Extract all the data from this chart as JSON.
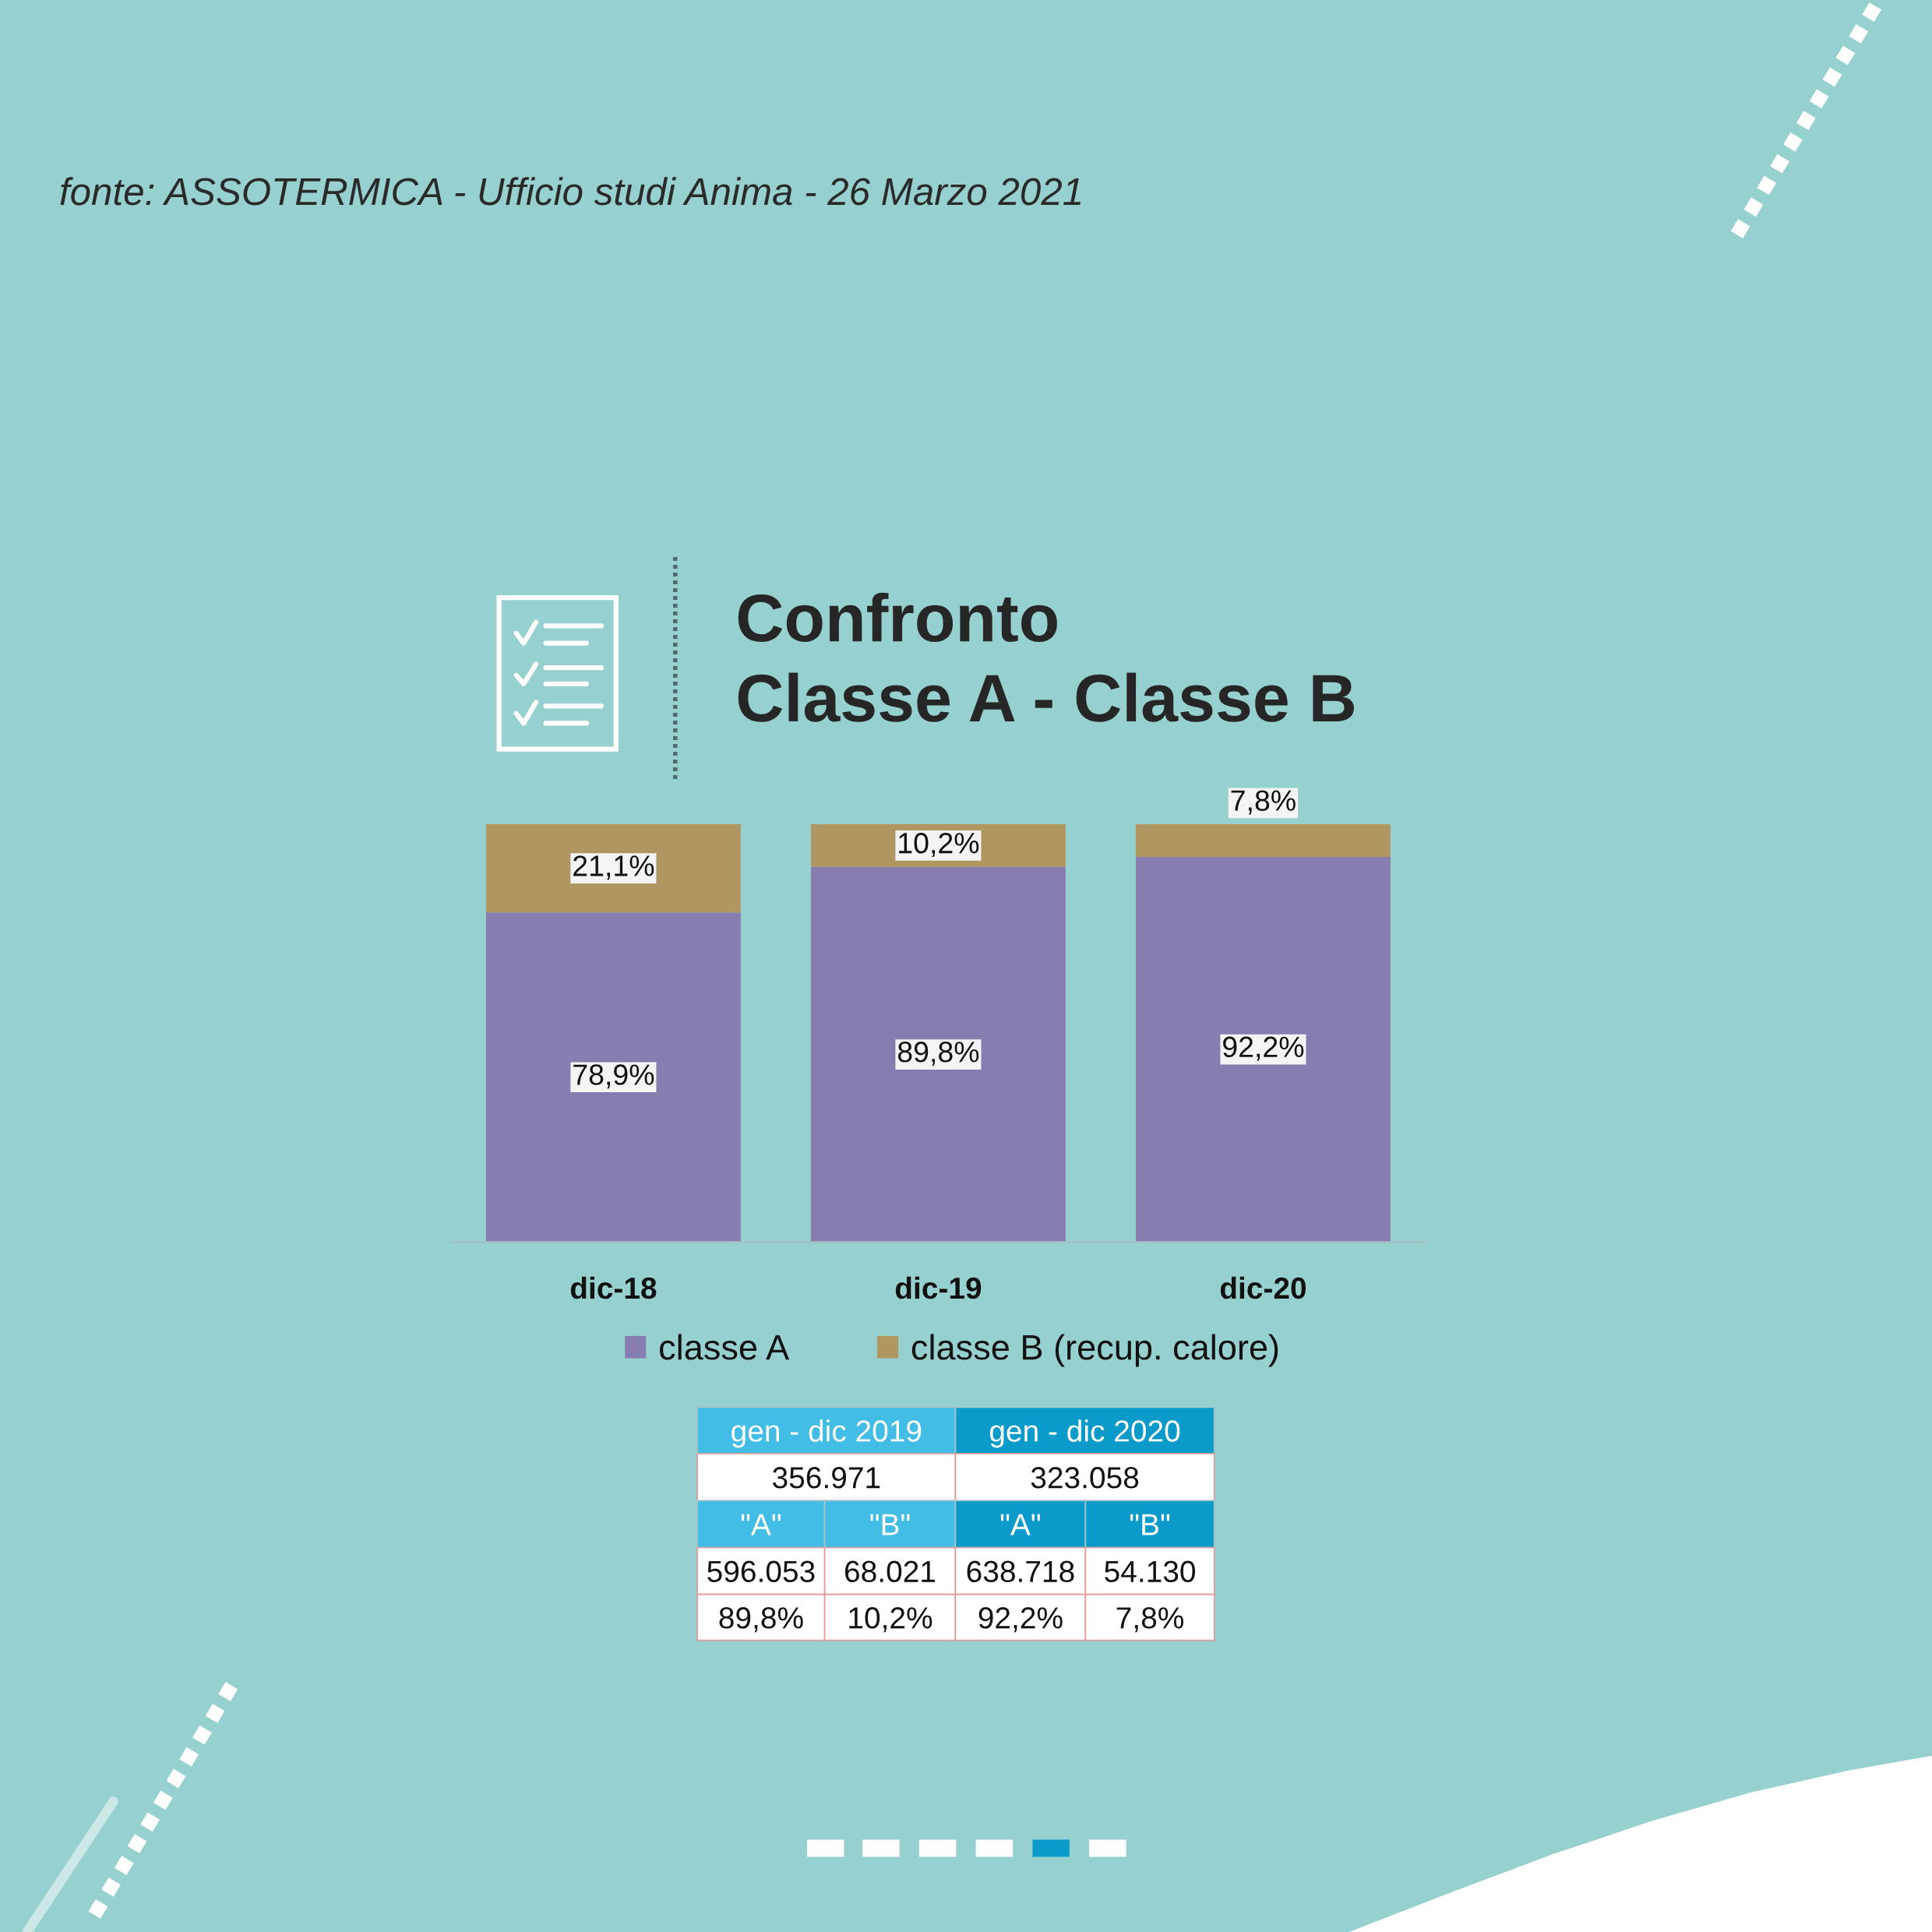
{
  "chart_data": {
    "type": "bar",
    "title": "Confronto\nClasse A - Classe B",
    "categories": [
      "dic-18",
      "dic-19",
      "dic-20"
    ],
    "stacked": true,
    "ylim": [
      0,
      100
    ],
    "tick_labels": "x",
    "legend": "bottom",
    "series": [
      {
        "name": "classe A",
        "color": "#877db0",
        "values": [
          78.9,
          89.8,
          92.2
        ],
        "value_labels": [
          "78,9%",
          "89,8%",
          "92,2%"
        ]
      },
      {
        "name": "classe B (recup. calore)",
        "color": "#b09761",
        "values": [
          21.1,
          10.2,
          7.8
        ],
        "value_labels": [
          "21,1%",
          "10,2%",
          "7,8%"
        ]
      }
    ],
    "annotations": [
      "fonte: ASSOTERMICA - Ufficio studi Anima - 26 Marzo 2021",
      "gen - dic 2019",
      "gen - dic 2020",
      "356.971",
      "323.058",
      "\"A\"",
      "\"B\"",
      "\"A\"",
      "\"B\"",
      "596.053",
      "68.021",
      "638.718",
      "54.130",
      "89,8%",
      "10,2%",
      "92,2%",
      "7,8%"
    ]
  }
}
